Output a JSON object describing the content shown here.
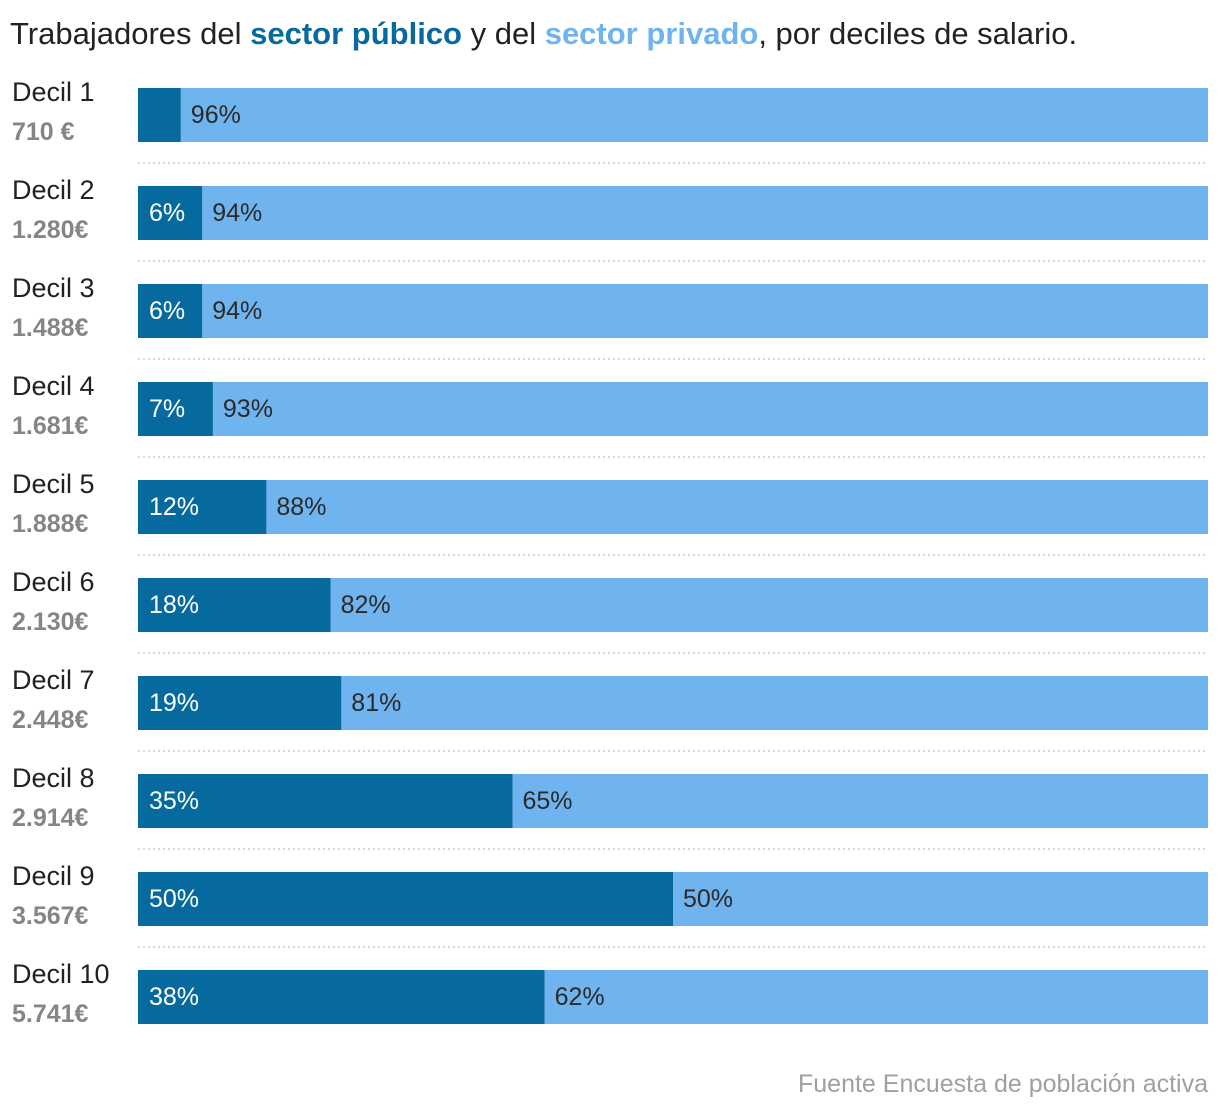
{
  "title": {
    "pre": "Trabajadores del ",
    "public": "sector público",
    "mid": " y del ",
    "private": "sector privado",
    "post": ", por deciles de salario."
  },
  "colors": {
    "public": "#066a9e",
    "private": "#70b4ef",
    "grid": "#cccccc"
  },
  "chart_data": {
    "type": "bar",
    "stacked": true,
    "orientation": "horizontal",
    "xlim": [
      0,
      100
    ],
    "unit": "%",
    "categories": [
      "Decil 1",
      "Decil 2",
      "Decil 3",
      "Decil 4",
      "Decil 5",
      "Decil 6",
      "Decil 7",
      "Decil 8",
      "Decil 9",
      "Decil 10"
    ],
    "salaries": [
      "710 €",
      "1.280€",
      "1.488€",
      "1.681€",
      "1.888€",
      "2.130€",
      "2.448€",
      "2.914€",
      "3.567€",
      "5.741€"
    ],
    "series": [
      {
        "name": "sector público",
        "values": [
          4,
          6,
          6,
          7,
          12,
          18,
          19,
          35,
          50,
          38
        ],
        "labels": [
          "",
          "6%",
          "6%",
          "7%",
          "12%",
          "18%",
          "19%",
          "35%",
          "50%",
          "38%"
        ]
      },
      {
        "name": "sector privado",
        "values": [
          96,
          94,
          94,
          93,
          88,
          82,
          81,
          65,
          50,
          62
        ],
        "labels": [
          "96%",
          "94%",
          "94%",
          "93%",
          "88%",
          "82%",
          "81%",
          "65%",
          "50%",
          "62%"
        ]
      }
    ]
  },
  "source": "Fuente Encuesta de población activa"
}
